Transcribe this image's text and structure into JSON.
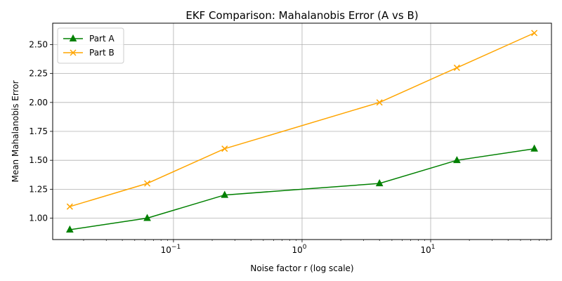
{
  "chart_data": {
    "type": "line",
    "title": "EKF Comparison: Mahalanobis Error (A vs B)",
    "xlabel": "Noise factor r (log scale)",
    "ylabel": "Mean Mahalanobis Error",
    "x_scale": "log",
    "x": [
      0.015625,
      0.0625,
      0.25,
      4,
      16,
      64
    ],
    "x_ticks": [
      {
        "value": 0.1,
        "base": "10",
        "exp": "−1"
      },
      {
        "value": 1,
        "base": "10",
        "exp": "0"
      },
      {
        "value": 10,
        "base": "10",
        "exp": "1"
      }
    ],
    "xlim": [
      0.0115,
      87
    ],
    "y_ticks": [
      1.0,
      1.25,
      1.5,
      1.75,
      2.0,
      2.25,
      2.5
    ],
    "y_tick_labels": [
      "1.00",
      "1.25",
      "1.50",
      "1.75",
      "2.00",
      "2.25",
      "2.50"
    ],
    "ylim": [
      0.815,
      2.685
    ],
    "grid": true,
    "legend_position": "top-left",
    "series": [
      {
        "name": "Part A",
        "values": [
          0.9,
          1.0,
          1.2,
          1.3,
          1.5,
          1.6
        ],
        "color": "#008000",
        "marker": "triangle-up"
      },
      {
        "name": "Part B",
        "values": [
          1.1,
          1.3,
          1.6,
          2.0,
          2.3,
          2.6
        ],
        "color": "#ffa500",
        "marker": "x"
      }
    ]
  }
}
